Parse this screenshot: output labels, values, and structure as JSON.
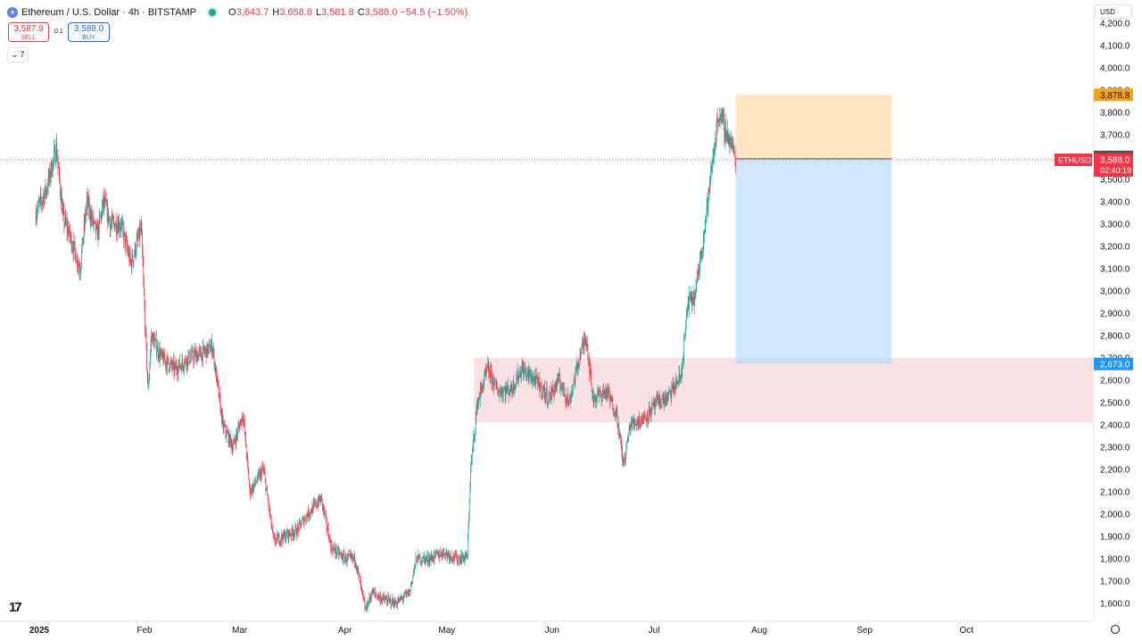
{
  "header": {
    "symbol_title": "Ethereum / U.S. Dollar · 4h · BITSTAMP",
    "ohlc": [
      {
        "key": "O",
        "value": "3,643.7"
      },
      {
        "key": "H",
        "value": "3,658.8"
      },
      {
        "key": "L",
        "value": "3,581.8"
      },
      {
        "key": "C",
        "value": "3,588.0"
      },
      {
        "key": "",
        "value": "−54.5 (−1.50%)"
      }
    ]
  },
  "trade": {
    "sell_price": "3,587.9",
    "sell_label": "SELL",
    "qty": "0.1",
    "buy_price": "3,588.0",
    "buy_label": "BUY"
  },
  "indicators_toggle": "7",
  "currency": "USD",
  "colors": {
    "up": "#26a69a",
    "down": "#f23645",
    "target_zone": "#ffe0b2",
    "stop_zone": "#bbdefb",
    "demand_zone": "#f8d7d9"
  },
  "chart_data": {
    "type": "candlestick",
    "timeframe": "4h",
    "y_axis": {
      "min": 1550,
      "max": 4220,
      "ticks": [
        1600,
        1700,
        1800,
        1900,
        2000,
        2100,
        2200,
        2300,
        2400,
        2500,
        2600,
        2700,
        2800,
        2900,
        3000,
        3100,
        3200,
        3300,
        3400,
        3500,
        3600,
        3700,
        3800,
        3900,
        4000,
        4100,
        4200
      ]
    },
    "x_axis": {
      "labels": [
        {
          "label": "2025",
          "date": "2025-01-01",
          "bold": true
        },
        {
          "label": "Feb",
          "date": "2025-02-01"
        },
        {
          "label": "Mar",
          "date": "2025-03-01"
        },
        {
          "label": "Apr",
          "date": "2025-04-01"
        },
        {
          "label": "May",
          "date": "2025-05-01"
        },
        {
          "label": "Jun",
          "date": "2025-06-01"
        },
        {
          "label": "Jul",
          "date": "2025-07-01"
        },
        {
          "label": "Aug",
          "date": "2025-08-01"
        },
        {
          "label": "Sep",
          "date": "2025-09-01"
        },
        {
          "label": "Oct",
          "date": "2025-10-01"
        }
      ]
    },
    "price_path": [
      [
        "2024-12-31",
        3350
      ],
      [
        "2025-01-03",
        3450
      ],
      [
        "2025-01-06",
        3640
      ],
      [
        "2025-01-08",
        3330
      ],
      [
        "2025-01-10",
        3250
      ],
      [
        "2025-01-13",
        3100
      ],
      [
        "2025-01-15",
        3400
      ],
      [
        "2025-01-18",
        3250
      ],
      [
        "2025-01-20",
        3400
      ],
      [
        "2025-01-22",
        3300
      ],
      [
        "2025-01-25",
        3300
      ],
      [
        "2025-01-28",
        3120
      ],
      [
        "2025-01-31",
        3280
      ],
      [
        "2025-02-02",
        2550
      ],
      [
        "2025-02-03",
        2800
      ],
      [
        "2025-02-06",
        2700
      ],
      [
        "2025-02-10",
        2650
      ],
      [
        "2025-02-14",
        2700
      ],
      [
        "2025-02-18",
        2720
      ],
      [
        "2025-02-21",
        2750
      ],
      [
        "2025-02-24",
        2400
      ],
      [
        "2025-02-27",
        2300
      ],
      [
        "2025-03-02",
        2450
      ],
      [
        "2025-03-04",
        2100
      ],
      [
        "2025-03-08",
        2200
      ],
      [
        "2025-03-11",
        1880
      ],
      [
        "2025-03-14",
        1900
      ],
      [
        "2025-03-18",
        1930
      ],
      [
        "2025-03-21",
        2000
      ],
      [
        "2025-03-25",
        2070
      ],
      [
        "2025-03-28",
        1850
      ],
      [
        "2025-04-01",
        1800
      ],
      [
        "2025-04-04",
        1800
      ],
      [
        "2025-04-07",
        1570
      ],
      [
        "2025-04-09",
        1650
      ],
      [
        "2025-04-12",
        1620
      ],
      [
        "2025-04-16",
        1600
      ],
      [
        "2025-04-20",
        1650
      ],
      [
        "2025-04-22",
        1800
      ],
      [
        "2025-04-26",
        1800
      ],
      [
        "2025-04-30",
        1830
      ],
      [
        "2025-05-04",
        1800
      ],
      [
        "2025-05-07",
        1810
      ],
      [
        "2025-05-08",
        2200
      ],
      [
        "2025-05-10",
        2500
      ],
      [
        "2025-05-13",
        2650
      ],
      [
        "2025-05-16",
        2550
      ],
      [
        "2025-05-20",
        2560
      ],
      [
        "2025-05-23",
        2650
      ],
      [
        "2025-05-27",
        2600
      ],
      [
        "2025-05-31",
        2520
      ],
      [
        "2025-06-03",
        2600
      ],
      [
        "2025-06-06",
        2500
      ],
      [
        "2025-06-09",
        2700
      ],
      [
        "2025-06-11",
        2800
      ],
      [
        "2025-06-13",
        2520
      ],
      [
        "2025-06-17",
        2550
      ],
      [
        "2025-06-20",
        2450
      ],
      [
        "2025-06-22",
        2220
      ],
      [
        "2025-06-24",
        2400
      ],
      [
        "2025-06-28",
        2430
      ],
      [
        "2025-07-02",
        2500
      ],
      [
        "2025-07-05",
        2520
      ],
      [
        "2025-07-09",
        2620
      ],
      [
        "2025-07-11",
        2950
      ],
      [
        "2025-07-13",
        2970
      ],
      [
        "2025-07-16",
        3300
      ],
      [
        "2025-07-18",
        3550
      ],
      [
        "2025-07-20",
        3800
      ],
      [
        "2025-07-22",
        3720
      ],
      [
        "2025-07-24",
        3650
      ],
      [
        "2025-07-25",
        3588
      ]
    ],
    "last_price": "3,588.0",
    "last_symbol": "ETHUSD",
    "countdown": "02:40:19",
    "high_marker": "3,592.7",
    "long_position": {
      "entry_label": "3,592.7",
      "target": 3878.8,
      "target_label": "3,878.8",
      "stop": 2673,
      "stop_label": "2,673.0",
      "start": "2025-07-25",
      "end": "2025-09-09"
    },
    "demand_zone": {
      "from": 2410,
      "to": 2700,
      "start": "2025-05-09"
    }
  }
}
